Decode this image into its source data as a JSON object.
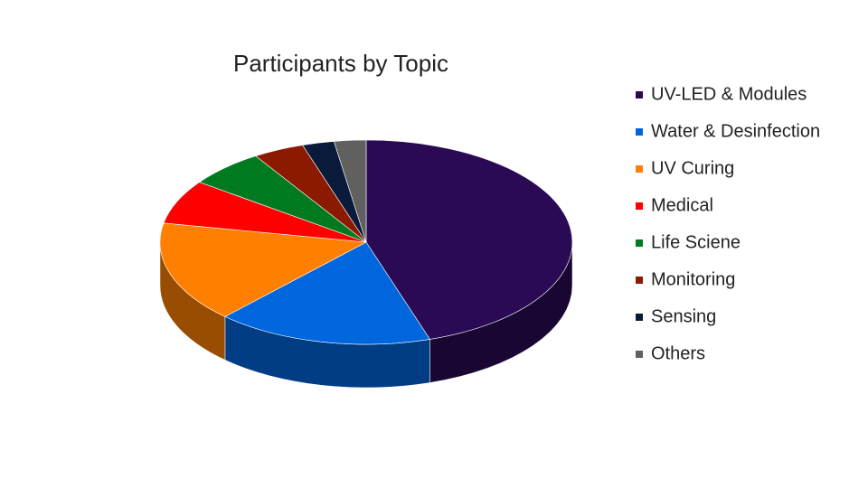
{
  "chart_data": {
    "type": "pie",
    "title": "Participants by Topic",
    "categories": [
      "UV-LED & Modules",
      "Water & Desinfection",
      "UV Curing",
      "Medical",
      "Life Sciene",
      "Monitoring",
      "Sensing",
      "Others"
    ],
    "values": [
      45,
      17,
      16,
      7,
      6,
      4,
      2.5,
      2.5
    ],
    "colors": [
      "#2a0a55",
      "#0066dd",
      "#ff8000",
      "#ff0000",
      "#007a1e",
      "#8b1a00",
      "#0a1a3a",
      "#606060"
    ],
    "legend": "right"
  }
}
